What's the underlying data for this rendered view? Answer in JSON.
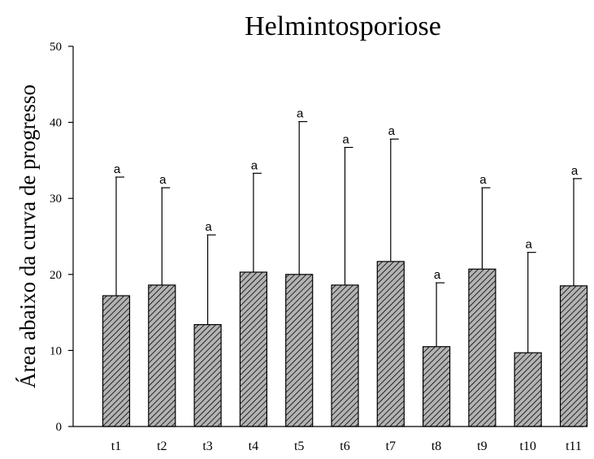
{
  "chart_data": {
    "type": "bar",
    "title": "Helmintosporiose",
    "xlabel": "",
    "ylabel": "Área abaixo da curva de progresso",
    "ylim": [
      0,
      50
    ],
    "yticks": [
      0,
      10,
      20,
      30,
      40,
      50
    ],
    "categories": [
      "t1",
      "t2",
      "t3",
      "t4",
      "t5",
      "t6",
      "t7",
      "t8",
      "t9",
      "t10",
      "t11"
    ],
    "values": [
      17.2,
      18.6,
      13.4,
      20.3,
      20.0,
      18.6,
      21.7,
      10.5,
      20.7,
      9.7,
      18.5
    ],
    "error_upper": [
      32.8,
      31.4,
      25.2,
      33.3,
      40.1,
      36.7,
      37.8,
      18.9,
      31.4,
      22.9,
      32.6
    ],
    "significance_labels": [
      "a",
      "a",
      "a",
      "a",
      "a",
      "a",
      "a",
      "a",
      "a",
      "a",
      "a"
    ],
    "grid": false,
    "legend": "none",
    "bar_fill": "#b3b3b3",
    "bar_hatch_color": "#000000",
    "axis_color": "#000000"
  }
}
